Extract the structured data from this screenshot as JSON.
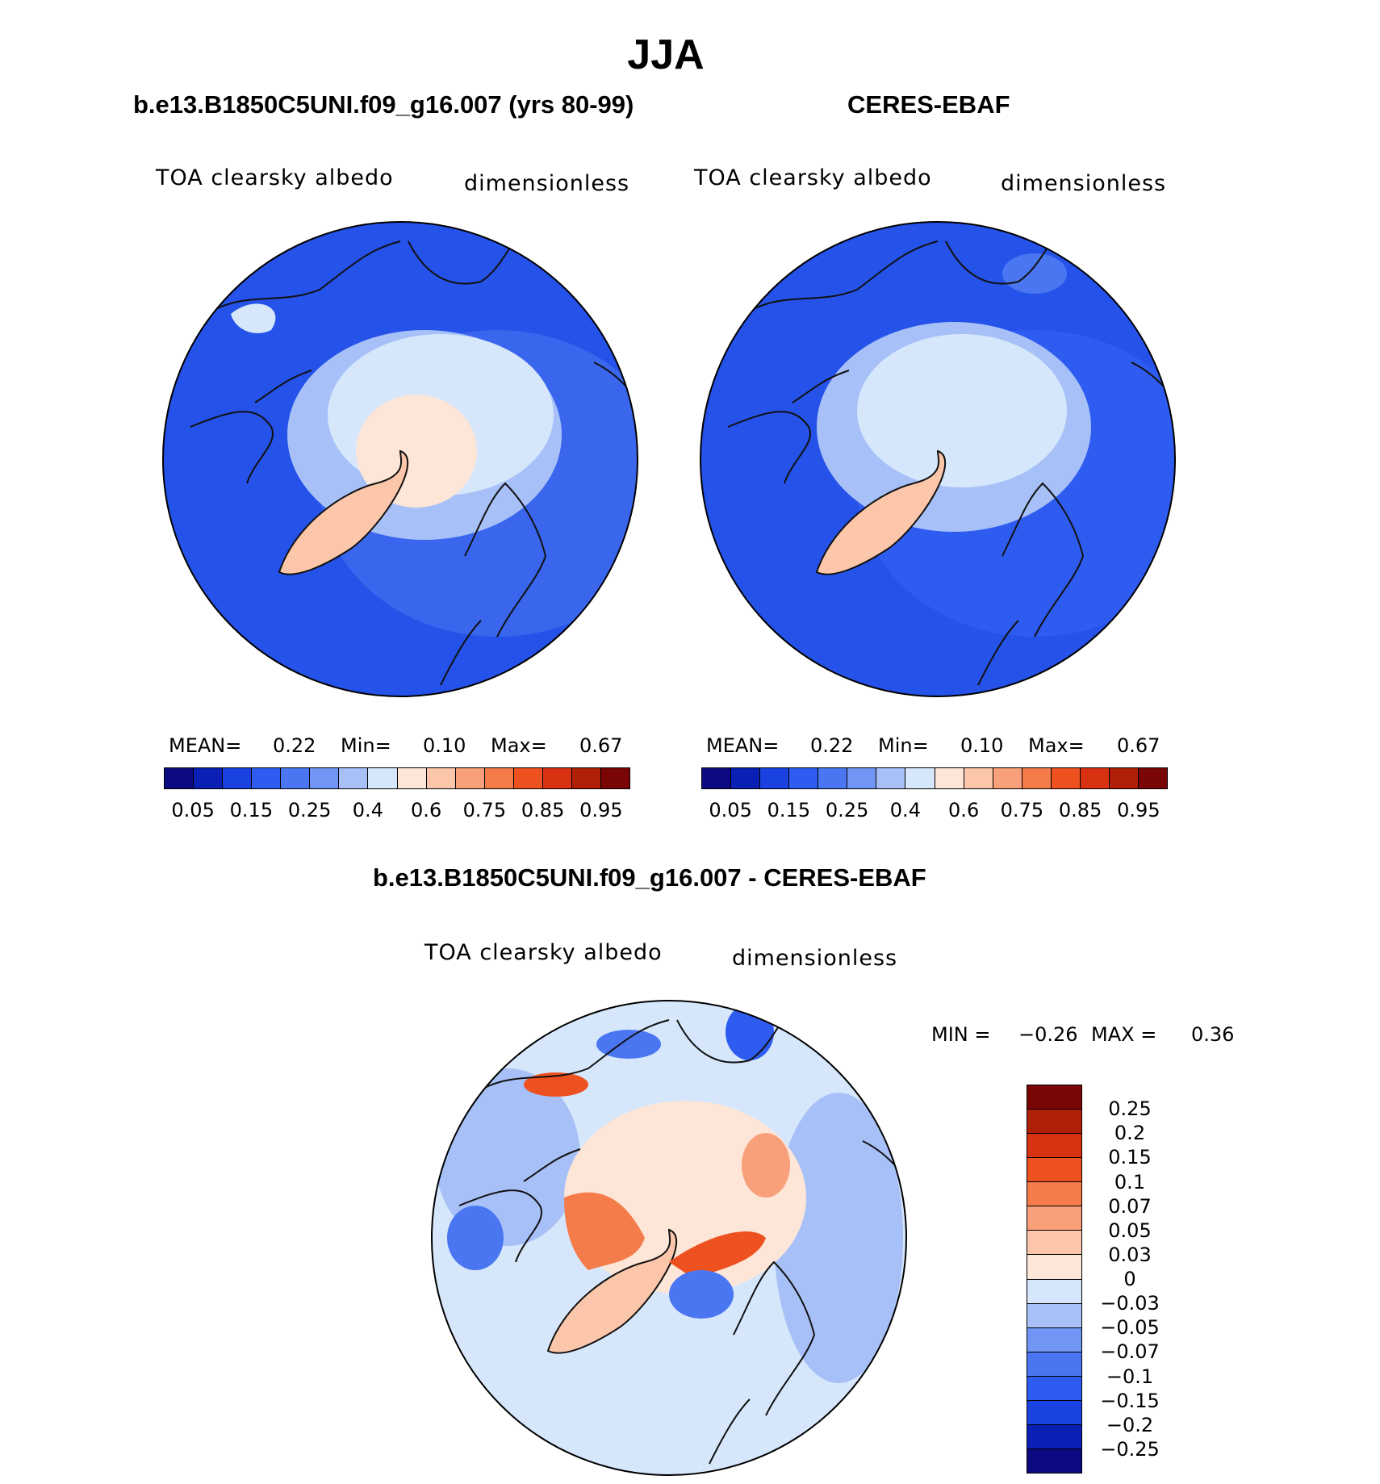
{
  "figure": {
    "season": "JJA",
    "model_title": "b.e13.B1850C5UNI.f09_g16.007 (yrs 80-99)",
    "obs_title": "CERES-EBAF",
    "diff_title": "b.e13.B1850C5UNI.f09_g16.007 - CERES-EBAF"
  },
  "chart_data": [
    {
      "type": "heatmap",
      "projection": "north polar stereographic",
      "title": "b.e13.B1850C5UNI.f09_g16.007 (yrs 80-99)",
      "variable": "TOA clearsky albedo",
      "units": "dimensionless",
      "stats": {
        "mean_label": "MEAN=",
        "mean": "0.22",
        "min_label": "Min=",
        "min": "0.10",
        "max_label": "Max=",
        "max": "0.67"
      },
      "colorbar": {
        "tick_labels": [
          "0.05",
          "0.15",
          "0.25",
          "0.4",
          "0.6",
          "0.75",
          "0.85",
          "0.95"
        ],
        "colors": [
          "#0b0a80",
          "#0a1fb4",
          "#1a42e0",
          "#2f5cf0",
          "#4a76f2",
          "#7095f5",
          "#a7c1f8",
          "#d6e7fc",
          "#fde6d7",
          "#fbc6a9",
          "#f8a07a",
          "#f47c4a",
          "#ee5120",
          "#d93212",
          "#b02008",
          "#7a0505"
        ]
      }
    },
    {
      "type": "heatmap",
      "projection": "north polar stereographic",
      "title": "CERES-EBAF",
      "variable": "TOA clearsky albedo",
      "units": "dimensionless",
      "stats": {
        "mean_label": "MEAN=",
        "mean": "0.22",
        "min_label": "Min=",
        "min": "0.10",
        "max_label": "Max=",
        "max": "0.67"
      },
      "colorbar": {
        "tick_labels": [
          "0.05",
          "0.15",
          "0.25",
          "0.4",
          "0.6",
          "0.75",
          "0.85",
          "0.95"
        ],
        "colors": [
          "#0b0a80",
          "#0a1fb4",
          "#1a42e0",
          "#2f5cf0",
          "#4a76f2",
          "#7095f5",
          "#a7c1f8",
          "#d6e7fc",
          "#fde6d7",
          "#fbc6a9",
          "#f8a07a",
          "#f47c4a",
          "#ee5120",
          "#d93212",
          "#b02008",
          "#7a0505"
        ]
      }
    },
    {
      "type": "heatmap",
      "projection": "north polar stereographic",
      "title": "b.e13.B1850C5UNI.f09_g16.007 - CERES-EBAF",
      "variable": "TOA clearsky albedo",
      "units": "dimensionless",
      "stats": {
        "min_label": "MIN =",
        "min": "−0.26",
        "max_label": "MAX =",
        "max": "0.36"
      },
      "colorbar": {
        "tick_labels": [
          "0.25",
          "0.2",
          "0.15",
          "0.1",
          "0.07",
          "0.05",
          "0.03",
          "0",
          "−0.03",
          "−0.05",
          "−0.07",
          "−0.1",
          "−0.15",
          "−0.2",
          "−0.25"
        ],
        "colors": [
          "#7a0505",
          "#b02008",
          "#d93212",
          "#ee5120",
          "#f47c4a",
          "#f8a07a",
          "#fbc6a9",
          "#fde6d7",
          "#d6e7fc",
          "#a7c1f8",
          "#7095f5",
          "#4a76f2",
          "#2f5cf0",
          "#1a42e0",
          "#0a1fb4",
          "#0b0a80"
        ]
      }
    }
  ]
}
